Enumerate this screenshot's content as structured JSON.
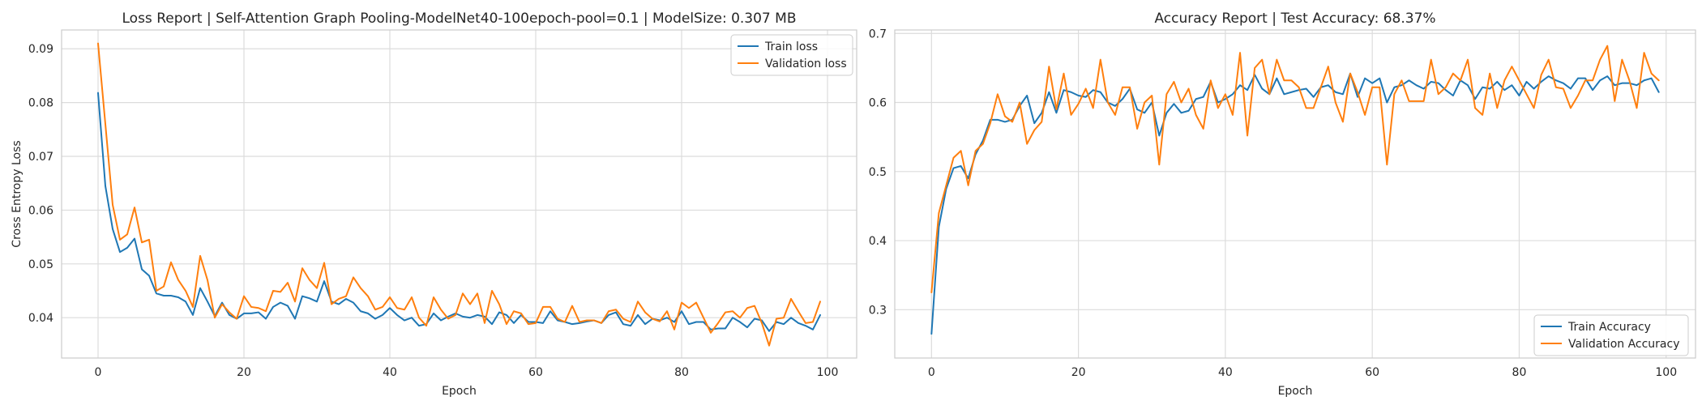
{
  "chart_data": [
    {
      "type": "line",
      "title": "Loss Report | Self-Attention Graph Pooling-ModelNet40-100epoch-pool=0.1 | ModelSize: 0.307 MB",
      "xlabel": "Epoch",
      "ylabel": "Cross Entropy Loss",
      "xlim": [
        -5,
        104
      ],
      "ylim": [
        0.0325,
        0.0935
      ],
      "xticks": [
        0,
        20,
        40,
        60,
        80,
        100
      ],
      "yticks": [
        0.04,
        0.05,
        0.06,
        0.07,
        0.08,
        0.09
      ],
      "xtick_labels": [
        "0",
        "20",
        "40",
        "60",
        "80",
        "100"
      ],
      "ytick_labels": [
        "0.04",
        "0.05",
        "0.06",
        "0.07",
        "0.08",
        "0.09"
      ],
      "grid": true,
      "legend_position": "top-right",
      "series": [
        {
          "name": "Train loss",
          "color": "#1f77b4",
          "values": [
            0.0818,
            0.0645,
            0.0565,
            0.0522,
            0.053,
            0.0547,
            0.049,
            0.0478,
            0.0445,
            0.0441,
            0.0441,
            0.0438,
            0.043,
            0.0405,
            0.0455,
            0.043,
            0.0403,
            0.0428,
            0.0405,
            0.0398,
            0.0408,
            0.0408,
            0.041,
            0.0398,
            0.042,
            0.0428,
            0.0422,
            0.0398,
            0.044,
            0.0436,
            0.043,
            0.0468,
            0.043,
            0.0425,
            0.0435,
            0.0428,
            0.0412,
            0.0408,
            0.0398,
            0.0405,
            0.0418,
            0.0405,
            0.0395,
            0.04,
            0.0385,
            0.0388,
            0.0408,
            0.0395,
            0.0402,
            0.0408,
            0.0402,
            0.04,
            0.0405,
            0.0402,
            0.0388,
            0.041,
            0.0405,
            0.039,
            0.0405,
            0.0392,
            0.0392,
            0.039,
            0.0412,
            0.0395,
            0.0392,
            0.0388,
            0.039,
            0.0393,
            0.0395,
            0.039,
            0.0405,
            0.041,
            0.0388,
            0.0385,
            0.0405,
            0.0388,
            0.0398,
            0.0395,
            0.04,
            0.0392,
            0.0412,
            0.0388,
            0.0392,
            0.0392,
            0.0378,
            0.038,
            0.038,
            0.04,
            0.0392,
            0.0382,
            0.0398,
            0.0395,
            0.0375,
            0.0392,
            0.0388,
            0.04,
            0.039,
            0.0385,
            0.0378,
            0.0405
          ]
        },
        {
          "name": "Validation loss",
          "color": "#ff7f0e",
          "values": [
            0.091,
            0.076,
            0.061,
            0.0545,
            0.0555,
            0.0605,
            0.054,
            0.0545,
            0.045,
            0.0458,
            0.0503,
            0.047,
            0.045,
            0.042,
            0.0515,
            0.047,
            0.04,
            0.0425,
            0.041,
            0.0398,
            0.044,
            0.042,
            0.0418,
            0.0412,
            0.045,
            0.0448,
            0.0465,
            0.043,
            0.0492,
            0.047,
            0.0455,
            0.0502,
            0.0425,
            0.0435,
            0.044,
            0.0475,
            0.0455,
            0.044,
            0.0415,
            0.042,
            0.0438,
            0.0418,
            0.0415,
            0.0438,
            0.04,
            0.0385,
            0.0438,
            0.0415,
            0.0398,
            0.0405,
            0.0445,
            0.0425,
            0.0445,
            0.039,
            0.045,
            0.0425,
            0.0388,
            0.0412,
            0.0408,
            0.0388,
            0.039,
            0.042,
            0.042,
            0.0398,
            0.0392,
            0.0422,
            0.0392,
            0.0395,
            0.0395,
            0.039,
            0.0412,
            0.0415,
            0.0398,
            0.0392,
            0.043,
            0.041,
            0.0398,
            0.0393,
            0.0412,
            0.0378,
            0.0428,
            0.0418,
            0.0428,
            0.04,
            0.0372,
            0.039,
            0.041,
            0.0412,
            0.04,
            0.0418,
            0.0422,
            0.039,
            0.0348,
            0.0398,
            0.04,
            0.0435,
            0.0412,
            0.039,
            0.0392,
            0.043
          ]
        }
      ]
    },
    {
      "type": "line",
      "title": "Accuracy Report | Test Accuracy: 68.37%",
      "xlabel": "Epoch",
      "ylabel": "",
      "xlim": [
        -5,
        104
      ],
      "ylim": [
        0.23,
        0.705
      ],
      "xticks": [
        0,
        20,
        40,
        60,
        80,
        100
      ],
      "yticks": [
        0.3,
        0.4,
        0.5,
        0.6,
        0.7
      ],
      "xtick_labels": [
        "0",
        "20",
        "40",
        "60",
        "80",
        "100"
      ],
      "ytick_labels": [
        "0.3",
        "0.4",
        "0.5",
        "0.6",
        "0.7"
      ],
      "grid": true,
      "legend_position": "bottom-right",
      "series": [
        {
          "name": "Train Accuracy",
          "color": "#1f77b4",
          "values": [
            0.265,
            0.42,
            0.475,
            0.505,
            0.508,
            0.49,
            0.525,
            0.545,
            0.575,
            0.575,
            0.572,
            0.575,
            0.595,
            0.61,
            0.57,
            0.585,
            0.615,
            0.585,
            0.618,
            0.615,
            0.61,
            0.608,
            0.618,
            0.615,
            0.6,
            0.595,
            0.605,
            0.62,
            0.59,
            0.585,
            0.6,
            0.552,
            0.585,
            0.598,
            0.585,
            0.588,
            0.605,
            0.608,
            0.63,
            0.6,
            0.605,
            0.612,
            0.625,
            0.618,
            0.64,
            0.62,
            0.612,
            0.635,
            0.612,
            0.615,
            0.618,
            0.62,
            0.608,
            0.622,
            0.625,
            0.615,
            0.612,
            0.642,
            0.608,
            0.635,
            0.628,
            0.635,
            0.6,
            0.622,
            0.625,
            0.632,
            0.625,
            0.62,
            0.63,
            0.628,
            0.618,
            0.61,
            0.632,
            0.625,
            0.605,
            0.622,
            0.62,
            0.63,
            0.618,
            0.625,
            0.61,
            0.63,
            0.62,
            0.63,
            0.638,
            0.632,
            0.628,
            0.62,
            0.635,
            0.635,
            0.618,
            0.632,
            0.638,
            0.625,
            0.628,
            0.628,
            0.625,
            0.632,
            0.635,
            0.615
          ]
        },
        {
          "name": "Validation Accuracy",
          "color": "#ff7f0e",
          "values": [
            0.325,
            0.44,
            0.48,
            0.52,
            0.53,
            0.48,
            0.53,
            0.54,
            0.57,
            0.612,
            0.58,
            0.572,
            0.6,
            0.54,
            0.56,
            0.572,
            0.652,
            0.59,
            0.642,
            0.582,
            0.598,
            0.62,
            0.592,
            0.662,
            0.6,
            0.582,
            0.622,
            0.622,
            0.562,
            0.6,
            0.61,
            0.51,
            0.612,
            0.63,
            0.6,
            0.62,
            0.582,
            0.562,
            0.632,
            0.592,
            0.612,
            0.582,
            0.672,
            0.552,
            0.65,
            0.662,
            0.612,
            0.662,
            0.632,
            0.632,
            0.622,
            0.592,
            0.592,
            0.622,
            0.652,
            0.6,
            0.572,
            0.642,
            0.615,
            0.582,
            0.622,
            0.622,
            0.51,
            0.612,
            0.632,
            0.602,
            0.602,
            0.602,
            0.662,
            0.612,
            0.622,
            0.642,
            0.632,
            0.662,
            0.592,
            0.582,
            0.642,
            0.592,
            0.632,
            0.652,
            0.632,
            0.612,
            0.592,
            0.64,
            0.662,
            0.622,
            0.62,
            0.592,
            0.61,
            0.632,
            0.632,
            0.662,
            0.682,
            0.602,
            0.662,
            0.632,
            0.592,
            0.672,
            0.642,
            0.632
          ]
        }
      ]
    }
  ]
}
